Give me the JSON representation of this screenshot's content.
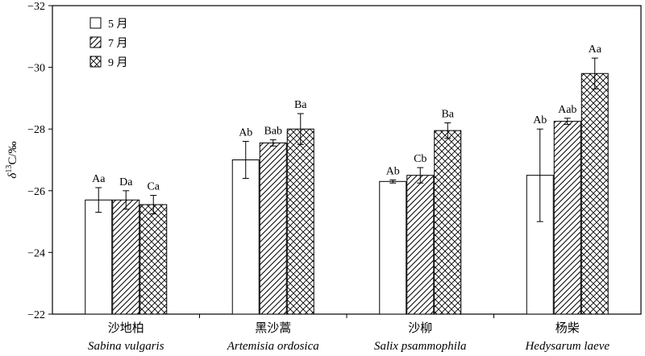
{
  "chart_data": {
    "type": "bar",
    "ylabel": "δ13C/‰",
    "ylabel_parts": {
      "symbol": "δ",
      "superscript": "13",
      "rest": "C/‰"
    },
    "ylim": [
      -22,
      -32
    ],
    "y_inverted": true,
    "yticks": [
      -32,
      -30,
      -28,
      -26,
      -24,
      -22
    ],
    "ytick_labels": [
      "−32",
      "−30",
      "−28",
      "−26",
      "−24",
      "−22"
    ],
    "grid": false,
    "legend_position": "top-left",
    "categories": [
      {
        "name_cn": "沙地柏",
        "name_latin": "Sabina vulgaris"
      },
      {
        "name_cn": "黑沙蒿",
        "name_latin": "Artemisia ordosica"
      },
      {
        "name_cn": "沙柳",
        "name_latin": "Salix psammophila"
      },
      {
        "name_cn": "杨柴",
        "name_latin": "Hedysarum laeve"
      }
    ],
    "series": [
      {
        "name": "5 月",
        "pattern": "open",
        "values": [
          -25.7,
          -27.0,
          -26.3,
          -26.5
        ],
        "errors": [
          0.4,
          0.6,
          0.05,
          1.5
        ],
        "labels": [
          "Aa",
          "Ab",
          "Ab",
          "Ab"
        ]
      },
      {
        "name": "7 月",
        "pattern": "diagonal",
        "values": [
          -25.7,
          -27.55,
          -26.5,
          -28.25
        ],
        "errors": [
          0.3,
          0.1,
          0.25,
          0.1
        ],
        "labels": [
          "Da",
          "Bab",
          "Cb",
          "Aab"
        ]
      },
      {
        "name": "9 月",
        "pattern": "crosshatch",
        "values": [
          -25.55,
          -28.0,
          -27.95,
          -29.8
        ],
        "errors": [
          0.3,
          0.5,
          0.25,
          0.5
        ],
        "labels": [
          "Ca",
          "Ba",
          "Ba",
          "Aa"
        ]
      }
    ]
  }
}
